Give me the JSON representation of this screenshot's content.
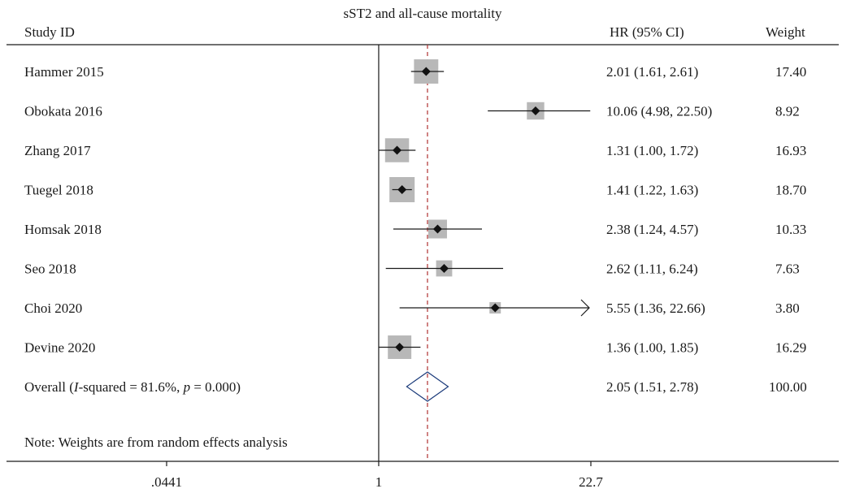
{
  "chart_data": {
    "type": "forest",
    "title": "sST2 and all-cause mortality",
    "headers": {
      "study": "Study ID",
      "effect": "HR (95% CI)",
      "weight": "Weight"
    },
    "studies": [
      {
        "label": "Hammer 2015",
        "hr": 2.01,
        "lo": 1.61,
        "hi": 2.61,
        "ci_text": "2.01 (1.61, 2.61)",
        "weight": 17.4,
        "weight_text": "17.40"
      },
      {
        "label": "Obokata 2016",
        "hr": 10.06,
        "lo": 4.98,
        "hi": 22.5,
        "ci_text": "10.06 (4.98, 22.50)",
        "weight": 8.92,
        "weight_text": "8.92"
      },
      {
        "label": "Zhang 2017",
        "hr": 1.31,
        "lo": 1.0,
        "hi": 1.72,
        "ci_text": "1.31 (1.00, 1.72)",
        "weight": 16.93,
        "weight_text": "16.93"
      },
      {
        "label": "Tuegel 2018",
        "hr": 1.41,
        "lo": 1.22,
        "hi": 1.63,
        "ci_text": "1.41 (1.22, 1.63)",
        "weight": 18.7,
        "weight_text": "18.70"
      },
      {
        "label": "Homsak 2018",
        "hr": 2.38,
        "lo": 1.24,
        "hi": 4.57,
        "ci_text": "2.38 (1.24, 4.57)",
        "weight": 10.33,
        "weight_text": "10.33"
      },
      {
        "label": "Seo 2018",
        "hr": 2.62,
        "lo": 1.11,
        "hi": 6.24,
        "ci_text": "2.62 (1.11, 6.24)",
        "weight": 7.63,
        "weight_text": "7.63"
      },
      {
        "label": "Choi 2020",
        "hr": 5.55,
        "lo": 1.36,
        "hi": 22.66,
        "ci_text": "5.55 (1.36, 22.66)",
        "weight": 3.8,
        "weight_text": "3.80",
        "arrow_right": true
      },
      {
        "label": "Devine 2020",
        "hr": 1.36,
        "lo": 1.0,
        "hi": 1.85,
        "ci_text": "1.36 (1.00, 1.85)",
        "weight": 16.29,
        "weight_text": "16.29"
      }
    ],
    "overall": {
      "label_prefix": "Overall (",
      "label_i": "I",
      "label_mid": "-squared = 81.6%, ",
      "label_p": "p",
      "label_suffix": " = 0.000)",
      "hr": 2.05,
      "lo": 1.51,
      "hi": 2.78,
      "ci_text": "2.05 (1.51, 2.78)",
      "weight_text": "100.00"
    },
    "note": "Note: Weights are from random effects analysis",
    "x_scale": "log",
    "x_ticks": [
      {
        "value": 0.0441,
        "label": ".0441"
      },
      {
        "value": 1,
        "label": "1"
      },
      {
        "value": 22.7,
        "label": "22.7"
      }
    ],
    "xlim": [
      0.0441,
      22.7
    ],
    "reference_line": 1,
    "colors": {
      "box": "#b8b8b8",
      "marker": "#111111",
      "overall_line": "#b03030",
      "line": "#1a1a1a"
    }
  }
}
